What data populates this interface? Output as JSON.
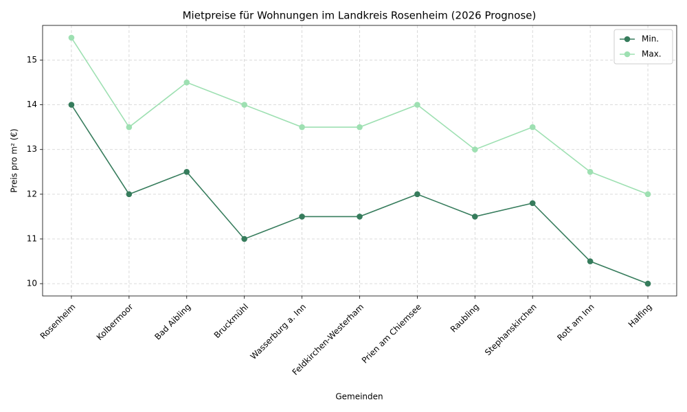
{
  "chart_data": {
    "type": "line",
    "title": "Mietpreise für Wohnungen im Landkreis Rosenheim (2026 Prognose)",
    "x_label": "Gemeinden",
    "y_label": "Preis pro m² (€)",
    "categories": [
      "Rosenheim",
      "Kolbermoor",
      "Bad Aibling",
      "Bruckmühl",
      "Wasserburg a. Inn",
      "Feldkirchen-Westerham",
      "Prien am Chiemsee",
      "Raubling",
      "Stephanskirchen",
      "Rott am Inn",
      "Halfing"
    ],
    "series": [
      {
        "name": "Min.",
        "color": "#367c5c",
        "values": [
          14,
          12,
          12.5,
          11,
          11.5,
          11.5,
          12,
          11.5,
          11.8,
          10.5,
          10
        ]
      },
      {
        "name": "Max.",
        "color": "#9ee0b2",
        "values": [
          15.5,
          13.5,
          14.5,
          14,
          13.5,
          13.5,
          14,
          13,
          13.5,
          12.5,
          12
        ]
      }
    ],
    "ylim": [
      9.725,
      15.775
    ],
    "yticks": [
      10,
      11,
      12,
      13,
      14,
      15
    ],
    "grid": true,
    "legend": "upper-right"
  }
}
